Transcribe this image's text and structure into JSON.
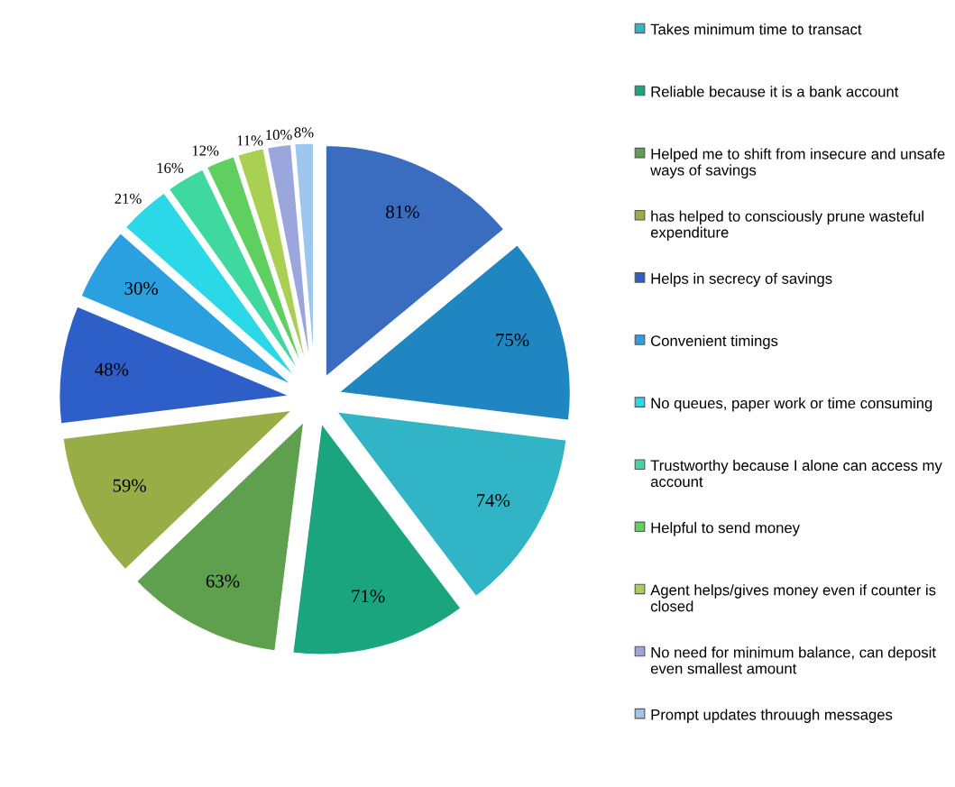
{
  "chart_data": {
    "type": "pie",
    "categories": [
      null,
      null,
      "Takes minimum time to transact",
      "Reliable because it is a bank account",
      "Helped me to shift from insecure and unsafe ways of savings",
      "has helped to consciously prune wasteful expenditure",
      "Helps in secrecy of savings",
      "Convenient timings",
      "No queues, paper work or time consuming",
      "Trustworthy because I alone can access my account",
      "Helpful to send money",
      "Agent helps/gives money even if counter is closed",
      "No need for minimum balance, can deposit even smallest amount",
      "Prompt updates throuugh messages"
    ],
    "values": [
      81,
      75,
      74,
      71,
      63,
      59,
      48,
      30,
      21,
      16,
      12,
      11,
      10,
      8
    ],
    "value_labels": [
      "81%",
      "75%",
      "74%",
      "71%",
      "63%",
      "59%",
      "48%",
      "30%",
      "21%",
      "16%",
      "12%",
      "11%",
      "10%",
      "8%"
    ],
    "colors": [
      "#3a6cc0",
      "#1f86c1",
      "#31b5c6",
      "#1aa57f",
      "#5fa04e",
      "#98ad45",
      "#2e5fc8",
      "#2aa0e0",
      "#2ad8e8",
      "#3ed8a0",
      "#5fd060",
      "#a9d052",
      "#9aa6dc",
      "#9cc6ee"
    ],
    "legend": "right"
  }
}
